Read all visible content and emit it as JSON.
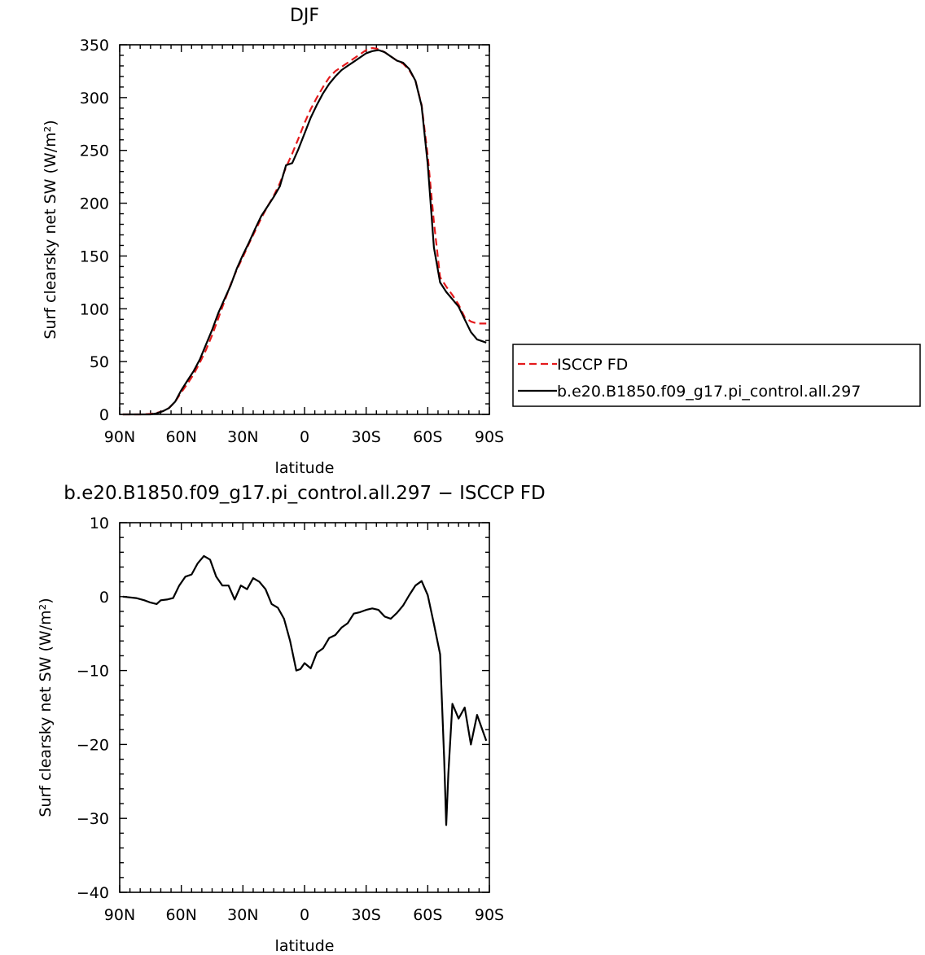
{
  "chart_data": [
    {
      "type": "line",
      "title": "DJF",
      "xlabel": "latitude",
      "ylabel": "Surf clearsky net SW (W/m²)",
      "xlim": [
        -90,
        90
      ],
      "ylim": [
        0,
        350
      ],
      "xticks": [
        -90,
        -60,
        -30,
        0,
        30,
        60,
        90
      ],
      "xtick_labels": [
        "90N",
        "60N",
        "30N",
        "0",
        "30S",
        "60S",
        "90S"
      ],
      "yticks": [
        0,
        50,
        100,
        150,
        200,
        250,
        300,
        350
      ],
      "ytick_labels": [
        "0",
        "50",
        "100",
        "150",
        "200",
        "250",
        "300",
        "350"
      ],
      "legend_position": "right",
      "series": [
        {
          "name": "ISCCP FD",
          "color": "#e41a1c",
          "dash": true,
          "x": [
            -88.5,
            -85,
            -80,
            -75,
            -72,
            -69,
            -66,
            -63,
            -60,
            -57,
            -54,
            -51,
            -48,
            -45,
            -42,
            -39,
            -36,
            -33,
            -30,
            -27,
            -24,
            -21,
            -18,
            -15,
            -12,
            -9,
            -6,
            -3,
            0,
            3,
            6,
            9,
            12,
            15,
            18,
            21,
            24,
            27,
            30,
            33,
            36,
            39,
            42,
            45,
            48,
            51,
            54,
            57,
            60,
            63,
            66,
            69,
            72,
            75,
            78,
            81,
            84,
            88.5
          ],
          "y": [
            0,
            0,
            0,
            0.5,
            1.5,
            3,
            6,
            12,
            21,
            29,
            38,
            49,
            61,
            75,
            91,
            107,
            123,
            137,
            149,
            162,
            174,
            186,
            197,
            207,
            219,
            234,
            247,
            261,
            276,
            289,
            300,
            310,
            319,
            325,
            329,
            333,
            337,
            341,
            345,
            347,
            346,
            343,
            339,
            335,
            332,
            326,
            316,
            293,
            245,
            182,
            130,
            121,
            113,
            104,
            92,
            88,
            86,
            86
          ]
        },
        {
          "name": "b.e20.B1850.f09_g17.pi_control.all.297",
          "color": "#000000",
          "dash": false,
          "x": [
            -88.5,
            -85,
            -80,
            -75,
            -72,
            -69,
            -66,
            -63,
            -60,
            -57,
            -54,
            -51,
            -48,
            -45,
            -42,
            -39,
            -36,
            -33,
            -30,
            -27,
            -24,
            -21,
            -18,
            -15,
            -12,
            -9,
            -6,
            -3,
            0,
            3,
            6,
            9,
            12,
            15,
            18,
            21,
            24,
            27,
            30,
            33,
            36,
            39,
            42,
            45,
            48,
            51,
            54,
            57,
            60,
            63,
            66,
            69,
            72,
            75,
            78,
            81,
            84,
            88.5
          ],
          "y": [
            0,
            0,
            0,
            0,
            1,
            3,
            6,
            12,
            23,
            32,
            41,
            52,
            66,
            80,
            96,
            109,
            122,
            138,
            151,
            163,
            176,
            188,
            197,
            206,
            216,
            236,
            238,
            251,
            266,
            281,
            293,
            304,
            313,
            320,
            326,
            330,
            334,
            338,
            342,
            344,
            345,
            343,
            339,
            335,
            333,
            327,
            316,
            292,
            237,
            158,
            125,
            116,
            109,
            102,
            90,
            78,
            71,
            68
          ]
        }
      ]
    },
    {
      "type": "line",
      "title": "b.e20.B1850.f09_g17.pi_control.all.297 − ISCCP FD",
      "xlabel": "latitude",
      "ylabel": "Surf clearsky net SW (W/m²)",
      "xlim": [
        -90,
        90
      ],
      "ylim": [
        -40,
        10
      ],
      "xticks": [
        -90,
        -60,
        -30,
        0,
        30,
        60,
        90
      ],
      "xtick_labels": [
        "90N",
        "60N",
        "30N",
        "0",
        "30S",
        "60S",
        "90S"
      ],
      "yticks": [
        -40,
        -30,
        -20,
        -10,
        0,
        10
      ],
      "ytick_labels": [
        "−40",
        "−30",
        "−20",
        "−10",
        "0",
        "10"
      ],
      "series": [
        {
          "color": "#000000",
          "x": [
            -88.5,
            -82,
            -78,
            -75,
            -72,
            -70,
            -67,
            -64,
            -61,
            -58,
            -55,
            -52,
            -49,
            -46,
            -43,
            -40,
            -37,
            -34,
            -31,
            -28,
            -25,
            -22,
            -19,
            -16,
            -13,
            -10,
            -7,
            -4,
            -2,
            0,
            3,
            6,
            9,
            12,
            15,
            18,
            21,
            24,
            27,
            30,
            33,
            36,
            39,
            42,
            45,
            48,
            51,
            54,
            57,
            60,
            63,
            66,
            68,
            69,
            70,
            72,
            75,
            78,
            81,
            84,
            88.5
          ],
          "y": [
            0,
            -0.2,
            -0.5,
            -0.8,
            -1,
            -0.5,
            -0.4,
            -0.2,
            1.5,
            2.7,
            3,
            4.5,
            5.5,
            5,
            2.7,
            1.5,
            1.5,
            -0.4,
            1.5,
            1,
            2.5,
            2,
            1,
            -1,
            -1.5,
            -3,
            -6,
            -10,
            -9.8,
            -9,
            -9.7,
            -7.6,
            -7,
            -5.6,
            -5.2,
            -4.2,
            -3.6,
            -2.3,
            -2.1,
            -1.8,
            -1.6,
            -1.8,
            -2.7,
            -3,
            -2.2,
            -1.2,
            0.2,
            1.5,
            2.1,
            0.2,
            -3.7,
            -7.8,
            -22,
            -30.9,
            -24,
            -14.5,
            -16.5,
            -15,
            -20,
            -16,
            -19.5
          ]
        }
      ]
    }
  ]
}
